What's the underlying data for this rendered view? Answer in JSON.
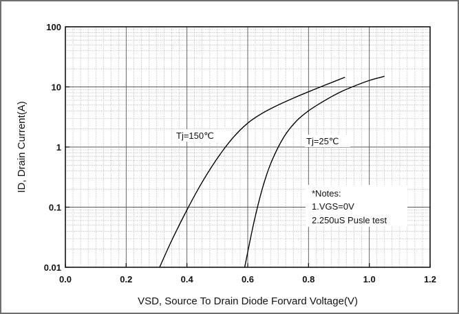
{
  "chart_data": {
    "type": "line",
    "title": "",
    "xlabel": "VSD, Source To Drain Diode Forvard Voltage(V)",
    "ylabel": "ID,  Drain Current(A)",
    "xlim": [
      0.0,
      1.2
    ],
    "ylim": [
      0.01,
      100
    ],
    "yscale": "log",
    "grid": true,
    "x_ticks": [
      "0.0",
      "0.2",
      "0.4",
      "0.6",
      "0.8",
      "1.0",
      "1.2"
    ],
    "y_ticks": [
      "0.01",
      "0.1",
      "1",
      "10",
      "100"
    ],
    "series": [
      {
        "name": "Tj=150℃",
        "x": [
          0.31,
          0.35,
          0.4,
          0.45,
          0.5,
          0.55,
          0.6,
          0.65,
          0.7,
          0.75,
          0.8,
          0.85,
          0.92
        ],
        "y": [
          0.01,
          0.028,
          0.09,
          0.26,
          0.65,
          1.4,
          2.5,
          3.7,
          5.0,
          6.5,
          8.3,
          10.5,
          14.5
        ]
      },
      {
        "name": "Tj=25℃",
        "x": [
          0.59,
          0.62,
          0.65,
          0.68,
          0.72,
          0.76,
          0.8,
          0.85,
          0.9,
          0.95,
          1.0,
          1.05
        ],
        "y": [
          0.01,
          0.055,
          0.22,
          0.6,
          1.5,
          2.7,
          4.0,
          5.8,
          8.0,
          10.3,
          12.8,
          15.0
        ]
      }
    ],
    "annotations": [
      "*Notes:",
      "1.VGS=0V",
      "2.250uS Pusle test"
    ]
  }
}
